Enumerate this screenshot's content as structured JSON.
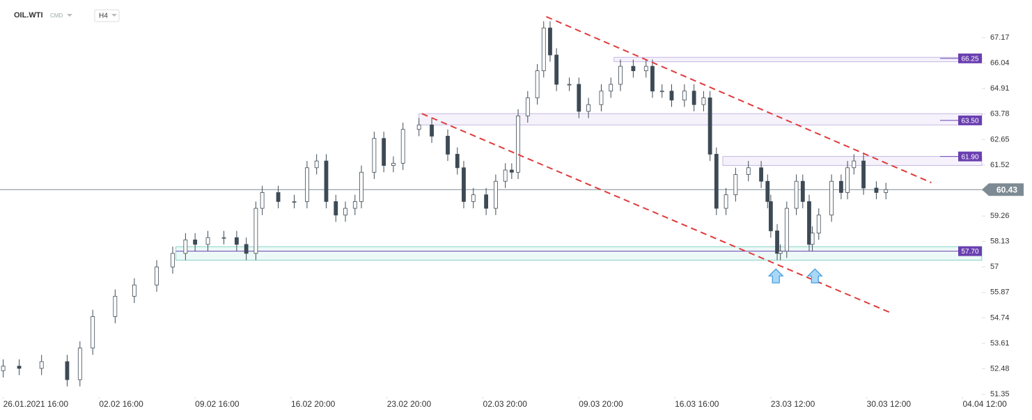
{
  "header": {
    "symbol": "OIL.WTI",
    "market": "CMD",
    "interval": "H4"
  },
  "chart_data": {
    "type": "candlestick",
    "color": "#3d4a55",
    "xlim": [
      -1,
      306
    ],
    "ylim": [
      51.23,
      68.84
    ],
    "xticks": [
      {
        "value": 0,
        "label": "26.01.2021 16:00"
      },
      {
        "value": 30,
        "label": "02.02 16:00"
      },
      {
        "value": 60,
        "label": "09.02 16:00"
      },
      {
        "value": 90,
        "label": "16.02 20:00"
      },
      {
        "value": 120,
        "label": "23.02 20:00"
      },
      {
        "value": 150,
        "label": "02.03 20:00"
      },
      {
        "value": 180,
        "label": "09.03 20:00"
      },
      {
        "value": 210,
        "label": "16.03 16:00"
      },
      {
        "value": 240,
        "label": "23.03 12:00"
      },
      {
        "value": 270,
        "label": "30.03 12:00"
      },
      {
        "value": 300,
        "label": "04.04 12:00"
      }
    ],
    "yticks": [
      67.17,
      66.04,
      64.91,
      63.78,
      62.65,
      61.52,
      60.39,
      59.26,
      58.13,
      57.0,
      55.87,
      54.74,
      53.61,
      52.48,
      51.35
    ],
    "x": [
      0,
      5,
      12,
      20,
      24,
      28,
      35,
      41,
      48,
      53,
      57,
      60,
      64,
      69,
      73,
      76,
      79,
      81,
      86,
      91,
      95,
      98,
      101,
      104,
      107,
      110,
      112,
      116,
      119,
      122,
      125,
      130,
      134,
      139,
      142,
      144,
      147,
      151,
      154,
      157,
      159,
      161,
      164,
      167,
      169,
      171,
      173,
      177,
      180,
      183,
      187,
      190,
      193,
      197,
      201,
      203,
      206,
      209,
      213,
      216,
      219,
      221,
      223,
      226,
      229,
      233,
      237,
      239,
      240,
      242,
      243,
      245,
      248,
      250,
      252,
      253,
      255,
      259,
      262,
      264,
      266,
      269,
      273,
      276
    ],
    "open": [
      52.4,
      52.6,
      52.5,
      52.8,
      52.0,
      53.4,
      54.8,
      55.7,
      56.2,
      57.0,
      57.6,
      58.2,
      58.0,
      58.3,
      58.3,
      58.0,
      57.6,
      59.6,
      60.3,
      59.9,
      59.9,
      61.4,
      61.7,
      59.9,
      59.3,
      59.6,
      59.9,
      61.2,
      62.7,
      61.5,
      61.6,
      63.1,
      63.3,
      62.8,
      62.0,
      61.4,
      59.9,
      60.2,
      59.6,
      60.8,
      61.3,
      61.2,
      63.7,
      64.5,
      65.7,
      67.6,
      66.4,
      65.1,
      65.1,
      63.9,
      64.2,
      64.8,
      65.1,
      65.9,
      65.7,
      65.9,
      64.8,
      64.8,
      64.4,
      64.8,
      64.2,
      64.5,
      62.0,
      59.6,
      60.2,
      61.1,
      61.4,
      60.8,
      59.9,
      58.6,
      57.6,
      57.7,
      59.6,
      60.8,
      59.9,
      58.0,
      58.5,
      59.3,
      60.8,
      60.3,
      61.4,
      61.7,
      60.5,
      60.3
    ],
    "high": [
      52.9,
      52.9,
      53.1,
      53.1,
      53.7,
      55.1,
      56.0,
      56.5,
      57.3,
      57.9,
      58.5,
      58.5,
      58.6,
      58.6,
      58.6,
      58.3,
      59.9,
      60.6,
      60.6,
      60.2,
      61.7,
      62.0,
      62.0,
      60.2,
      59.9,
      60.2,
      61.5,
      63.0,
      63.0,
      61.9,
      63.4,
      63.6,
      63.6,
      63.1,
      62.3,
      61.7,
      60.5,
      60.5,
      61.1,
      61.6,
      61.6,
      64.0,
      64.8,
      66.0,
      67.9,
      67.9,
      66.7,
      65.4,
      65.4,
      64.5,
      65.1,
      65.4,
      66.2,
      66.2,
      66.2,
      66.2,
      65.1,
      65.1,
      65.1,
      65.1,
      64.8,
      64.8,
      62.3,
      60.5,
      61.4,
      61.7,
      61.7,
      61.1,
      60.2,
      58.9,
      58.0,
      59.9,
      61.1,
      61.1,
      60.2,
      58.8,
      59.6,
      61.1,
      61.1,
      61.7,
      62.0,
      62.0,
      60.8,
      60.73
    ],
    "low": [
      52.1,
      52.2,
      52.2,
      51.7,
      51.7,
      53.1,
      54.5,
      55.4,
      55.9,
      56.7,
      57.3,
      57.7,
      57.7,
      58.0,
      57.7,
      57.3,
      57.3,
      59.3,
      59.6,
      59.6,
      59.6,
      61.1,
      59.6,
      59.0,
      59.0,
      59.3,
      59.6,
      60.9,
      61.2,
      61.2,
      61.3,
      62.8,
      62.5,
      61.7,
      61.1,
      59.6,
      59.6,
      59.3,
      59.3,
      60.5,
      60.9,
      60.9,
      63.4,
      64.2,
      65.4,
      66.1,
      64.8,
      64.8,
      63.6,
      63.6,
      63.9,
      64.5,
      64.8,
      65.4,
      65.4,
      64.5,
      64.5,
      64.1,
      64.1,
      63.9,
      63.9,
      61.7,
      59.3,
      59.3,
      59.9,
      60.8,
      60.5,
      59.6,
      58.3,
      57.3,
      57.3,
      57.4,
      59.3,
      59.6,
      57.7,
      57.7,
      58.2,
      59.0,
      60.0,
      60.0,
      61.1,
      60.2,
      60.0,
      60.0
    ],
    "close": [
      52.6,
      52.5,
      52.8,
      52.0,
      53.4,
      54.8,
      55.7,
      56.2,
      57.0,
      57.6,
      58.2,
      58.0,
      58.3,
      58.3,
      58.0,
      57.6,
      59.6,
      60.3,
      59.9,
      59.9,
      61.4,
      61.7,
      59.9,
      59.3,
      59.6,
      59.9,
      61.2,
      62.7,
      61.5,
      61.6,
      63.1,
      63.3,
      62.8,
      62.0,
      61.4,
      59.9,
      60.2,
      59.6,
      60.8,
      61.3,
      61.2,
      63.7,
      64.5,
      65.7,
      67.6,
      66.4,
      65.1,
      65.1,
      63.9,
      64.2,
      64.8,
      65.1,
      65.9,
      65.7,
      65.9,
      64.8,
      64.8,
      64.4,
      64.8,
      64.2,
      64.5,
      62.0,
      59.6,
      60.2,
      61.1,
      61.4,
      60.8,
      59.9,
      58.6,
      57.6,
      57.7,
      59.6,
      60.8,
      59.9,
      58.0,
      58.5,
      59.3,
      60.8,
      60.3,
      61.4,
      61.7,
      60.5,
      60.3,
      60.43
    ],
    "current_price": {
      "value": 60.43,
      "label": "60.43"
    },
    "levels": [
      {
        "value": 66.25,
        "label": "66.25",
        "zone": [
          66.1,
          66.3
        ],
        "start": 191
      },
      {
        "value": 63.5,
        "label": "63.50",
        "zone": [
          63.3,
          63.8
        ],
        "start": 130
      },
      {
        "value": 61.9,
        "label": "61.90",
        "zone": [
          61.5,
          61.9
        ],
        "start": 225
      },
      {
        "value": 57.7,
        "label": "57.70",
        "zone": [
          57.3,
          57.9
        ],
        "start": 54
      }
    ],
    "trendlines": [
      {
        "x": [
          169.8,
          290.2
        ],
        "y": [
          68.1,
          60.74
        ]
      },
      {
        "x": [
          130.9,
          277.1
        ],
        "y": [
          63.8,
          54.99
        ]
      }
    ],
    "arrows": [
      {
        "x": 241.6,
        "y": 56.6
      },
      {
        "x": 253.8,
        "y": 56.6
      }
    ]
  }
}
